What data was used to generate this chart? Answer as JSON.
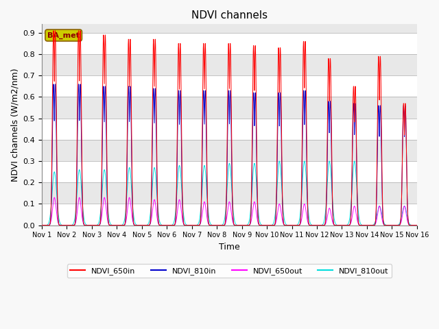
{
  "title": "NDVI channels",
  "xlabel": "Time",
  "ylabel": "NDVI channels (W/m2/nm)",
  "annotation_text": "BA_met",
  "annotation_color": "#8B0000",
  "annotation_bg": "#cccc00",
  "ylim": [
    0.0,
    0.94
  ],
  "yticks": [
    0.0,
    0.1,
    0.2,
    0.3,
    0.4,
    0.5,
    0.6,
    0.7,
    0.8,
    0.9
  ],
  "num_days": 15,
  "colors": {
    "NDVI_650in": "#ff0000",
    "NDVI_810in": "#0000cc",
    "NDVI_650out": "#ff00ff",
    "NDVI_810out": "#00dddd"
  },
  "peak_heights_650in": [
    0.91,
    0.91,
    0.89,
    0.87,
    0.87,
    0.85,
    0.85,
    0.85,
    0.84,
    0.83,
    0.86,
    0.78,
    0.65,
    0.79,
    0.57
  ],
  "peak_heights_810in": [
    0.66,
    0.66,
    0.65,
    0.65,
    0.64,
    0.63,
    0.63,
    0.63,
    0.62,
    0.62,
    0.63,
    0.58,
    0.57,
    0.56,
    0.56
  ],
  "peak_heights_650out": [
    0.13,
    0.13,
    0.13,
    0.13,
    0.12,
    0.12,
    0.11,
    0.11,
    0.11,
    0.1,
    0.1,
    0.08,
    0.09,
    0.09,
    0.09
  ],
  "peak_heights_810out": [
    0.25,
    0.26,
    0.26,
    0.27,
    0.27,
    0.28,
    0.28,
    0.29,
    0.29,
    0.3,
    0.3,
    0.3,
    0.3,
    0.09,
    0.09
  ],
  "peak_sigma": 0.045,
  "peak_sigma_out": 0.07,
  "peak_sigma_810out": 0.09,
  "points_per_day": 500,
  "background_color": "#e8e8e8",
  "band_color": "#d0d0d0",
  "grid_color": "#ffffff",
  "legend_labels": [
    "NDVI_650in",
    "NDVI_810in",
    "NDVI_650out",
    "NDVI_810out"
  ]
}
